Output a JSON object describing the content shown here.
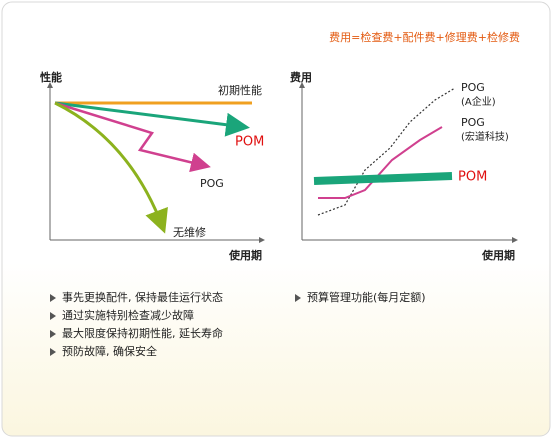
{
  "header": {
    "formula": "费用=检查费+配件费+修理费+检修费"
  },
  "left_chart": {
    "y_label": "性能",
    "x_label": "使用期",
    "initial": "初期性能",
    "pom": "POM",
    "pog": "POG",
    "no_maintenance": "无维修"
  },
  "right_chart": {
    "y_label": "费用",
    "x_label": "使用期",
    "pog_a": "POG",
    "pog_a_note": "(A企业)",
    "pog_b": "POG",
    "pog_b_note": "(宏道科技)",
    "pom": "POM"
  },
  "left_bullets": [
    "事先更换配件, 保持最佳运行状态",
    "通过实施特别检查减少故障",
    "最大限度保持初期性能, 延长寿命",
    "预防故障, 确保安全"
  ],
  "right_bullets": [
    "预算管理功能(每月定额)"
  ]
}
